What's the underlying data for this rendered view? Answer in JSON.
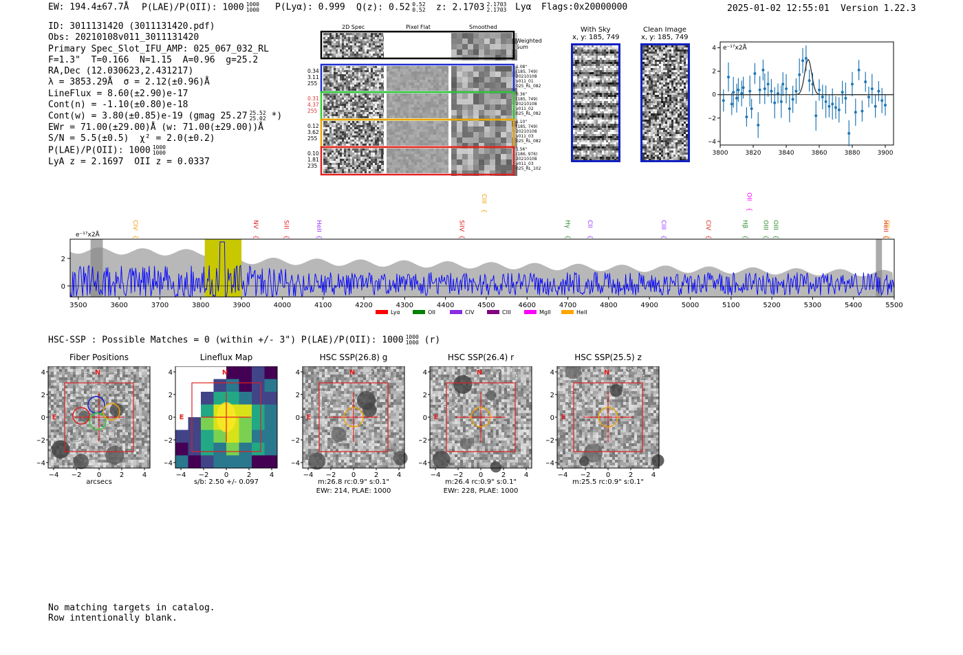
{
  "header": {
    "ew": "EW: 194.4±67.7Å",
    "plae_label": "P(LAE)/P(OII): 1000",
    "plae_hi": "1000",
    "plae_lo": "1000",
    "plya": "P(Lyα): 0.999",
    "qz_label": "Q(z): 0.52",
    "qz_hi": "0.52",
    "qz_lo": "0.52",
    "z_label": "z: 2.1703",
    "z_hi": "2.1703",
    "z_lo": "2.1703",
    "line": "Lyα",
    "flags": "Flags:0x20000000",
    "timestamp": "2025-01-02 12:55:01",
    "version": "Version 1.22.3"
  },
  "info": {
    "id": "ID: 3011131420 (3011131420.pdf)",
    "obs": "Obs: 20210108v011_3011131420",
    "primary": "Primary Spec_Slot_IFU_AMP: 025_067_032_RL",
    "params": "F=1.3\"  T=0.166  N=1.15  A=0.96  g=25.2",
    "radec": "RA,Dec (12.030623,2.431217)",
    "lambda": "λ = 3853.29Å  σ = 2.12(±0.96)Å",
    "lineflux": "LineFlux = 8.60(±2.90)e-17",
    "contn": "Cont(n) = -1.10(±0.80)e-18",
    "contw": "Cont(w) = 3.80(±0.85)e-19 (gmag 25.27",
    "contw_hi": "25.52",
    "contw_lo": "25.02",
    "contw_end": "*)",
    "ewr": "EWr = 71.00(±29.00)Å (w: 71.00(±29.00))Å",
    "sn": "S/N = 5.5(±0.5)  χ² = 2.0(±0.2)",
    "plae": "P(LAE)/P(OII): 1000",
    "plae_hi": "1000",
    "plae_lo": "1000",
    "lyaz": "LyA z = 2.1697  OII z = 0.0337"
  },
  "cutouts": {
    "col1": "2D Spec",
    "col2": "Pixel Flat",
    "col3": "Smoothed",
    "weighted": "Weighted\nSum",
    "rows": [
      {
        "left": "0.34\n3.11\n255",
        "right": "1.08\"\n(185, 749)\n20210108\nv011_01\n025_RL_082",
        "color": "#1f2fd0",
        "left_color": "#000000"
      },
      {
        "left": "0.31\n4.37\n255",
        "right": "0.36\"\n(185, 749)\n20210108\nv011_02\n025_RL_082",
        "color": "#2ecc2e",
        "left_color": "#e03030"
      },
      {
        "left": "0.12\n3.62\n255",
        "right": "1.10\"\n(185, 749)\n20210108\nv011_03\n025_RL_082",
        "color": "#f0a000",
        "left_color": "#000000"
      },
      {
        "left": "0.10\n1.81\n235",
        "right": "1.56\"\n(186, 976)\n20210108\nv011_03\n025_RL_102",
        "color": "#e02020",
        "left_color": "#000000"
      }
    ]
  },
  "sky": {
    "with_sky_title": "With Sky",
    "with_sky_xy": "x, y: 185, 749",
    "clean_title": "Clean Image",
    "clean_xy": "x, y: 185, 749"
  },
  "zoom_chart": {
    "unit_label": "e⁻¹⁷x2Å",
    "xticks": [
      "3800",
      "3820",
      "3840",
      "3860",
      "3880",
      "3900"
    ],
    "yticks": [
      "4",
      "2",
      "0",
      "−2",
      "−4"
    ]
  },
  "spectrum": {
    "unit_label": "e⁻¹⁷x2Å",
    "xticks": [
      "3500",
      "3600",
      "3700",
      "3800",
      "3900",
      "4000",
      "4100",
      "4200",
      "4300",
      "4400",
      "4500",
      "4600",
      "4700",
      "4800",
      "4900",
      "5000",
      "5100",
      "5200",
      "5300",
      "5400",
      "5500"
    ],
    "yticks": [
      "2",
      "0"
    ],
    "lines": [
      {
        "name": "CIV",
        "color": "#f0a000"
      },
      {
        "name": "NV",
        "color": "#e02020"
      },
      {
        "name": "SiII",
        "color": "#e02020"
      },
      {
        "name": "HeII",
        "color": "#9b30ff"
      },
      {
        "name": "SiIV",
        "color": "#e02020"
      },
      {
        "name": "CIII",
        "color": "#f0a000"
      },
      {
        "name": "Hγ",
        "color": "#2e8b2e"
      },
      {
        "name": "CII",
        "color": "#9b30ff"
      },
      {
        "name": "CIII",
        "color": "#9b30ff"
      },
      {
        "name": "CIV",
        "color": "#e02020"
      },
      {
        "name": "Hβ",
        "color": "#2e8b2e"
      },
      {
        "name": "OII",
        "color": "#ff00ff"
      },
      {
        "name": "OIII",
        "color": "#2e8b2e"
      },
      {
        "name": "OIII",
        "color": "#2e8b2e"
      },
      {
        "name": "HeII",
        "color": "#e02020"
      },
      {
        "name": "CII",
        "color": "#f0a000"
      }
    ],
    "legend": [
      {
        "name": "Lyα",
        "color": "#ff0000"
      },
      {
        "name": "OII",
        "color": "#008000"
      },
      {
        "name": "CIV",
        "color": "#8a2be2"
      },
      {
        "name": "CIII",
        "color": "#800080"
      },
      {
        "name": "MgII",
        "color": "#ff00ff"
      },
      {
        "name": "HeII",
        "color": "#ffa500"
      }
    ]
  },
  "hsc": {
    "label": "HSC-SSP : Possible Matches = 0 (within +/- 3\")  P(LAE)/P(OII): 1000",
    "hi": "1000",
    "lo": "1000",
    "suffix": "(r)"
  },
  "panels": [
    {
      "title": "Fiber Positions",
      "cap1": "arcsecs",
      "cap2": ""
    },
    {
      "title": "Lineflux Map",
      "cap1": "s/b: 2.50 +/- 0.097",
      "cap2": ""
    },
    {
      "title": "HSC SSP(26.8) g",
      "cap1": "m:26.8 rc:0.9\"  s:0.1\"",
      "cap2": "EWr: 214, PLAE: 1000"
    },
    {
      "title": "HSC SSP(26.4) r",
      "cap1": "m:26.4 rc:0.9\"  s:0.1\"",
      "cap2": "EWr: 228, PLAE: 1000"
    },
    {
      "title": "HSC SSP(25.5) z",
      "cap1": "m:25.5 rc:0.9\"  s:0.1\"",
      "cap2": ""
    }
  ],
  "panel_ticks": {
    "x": [
      "−4",
      "−2",
      "0",
      "2",
      "4"
    ],
    "y": [
      "4",
      "2",
      "0",
      "−2",
      "−4"
    ],
    "n_label": "N",
    "e_label": "E"
  },
  "footer": {
    "line1": "No matching targets in catalog.",
    "line2": "Row intentionally blank."
  },
  "chart_data": [
    {
      "type": "scatter",
      "title": "",
      "xlabel": "",
      "ylabel": "e⁻¹⁷x2Å",
      "xlim": [
        3800,
        3905
      ],
      "ylim": [
        -4.3,
        4.5
      ],
      "x": [
        3802,
        3805,
        3807,
        3808,
        3810,
        3811,
        3813,
        3814,
        3816,
        3818,
        3819,
        3821,
        3823,
        3824,
        3826,
        3827,
        3829,
        3831,
        3833,
        3835,
        3837,
        3838,
        3840,
        3842,
        3844,
        3846,
        3848,
        3850,
        3852,
        3854,
        3856,
        3858,
        3860,
        3862,
        3864,
        3866,
        3868,
        3870,
        3872,
        3874,
        3876,
        3878,
        3880,
        3882,
        3884,
        3886,
        3888,
        3890,
        3892,
        3894,
        3896,
        3898,
        3900
      ],
      "y": [
        -0.5,
        1.5,
        -0.8,
        0.2,
        -0.3,
        0.4,
        0.1,
        0.6,
        -1.9,
        0.3,
        -1.2,
        1.8,
        -2.6,
        0.4,
        2.1,
        0.5,
        0.9,
        0.3,
        -0.7,
        0.1,
        -0.6,
        0.9,
        0.5,
        -1.2,
        -0.4,
        0.3,
        1.7,
        2.9,
        3.1,
        1.2,
        0.9,
        -1.8,
        0.4,
        -0.2,
        -0.6,
        -1.0,
        -0.8,
        -1.1,
        -1.3,
        0.2,
        -0.3,
        -3.3,
        0.9,
        -1.5,
        2.1,
        -1.4,
        1.1,
        -0.2,
        0.5,
        -1.0,
        0.3,
        -0.5,
        -0.9
      ],
      "fit": {
        "center": 3853.3,
        "sigma": 2.12,
        "amplitude": 3.0
      }
    },
    {
      "type": "line",
      "title": "",
      "xlabel": "",
      "ylabel": "e⁻¹⁷x2Å",
      "xlim": [
        3480,
        5500
      ],
      "ylim": [
        -0.8,
        3.4
      ],
      "series": [
        {
          "name": "",
          "color": "#0000ff"
        },
        {
          "name": "",
          "color": "#b8b8b8"
        }
      ],
      "highlight": {
        "center": 3853,
        "min": 3810,
        "max": 3900,
        "color": "#c8c800"
      },
      "line_wavelengths": [
        3630,
        3925,
        4000,
        4080,
        4430,
        4485,
        4690,
        4745,
        4925,
        5035,
        5125,
        5135,
        5175,
        5200,
        5470,
        5470
      ]
    }
  ]
}
